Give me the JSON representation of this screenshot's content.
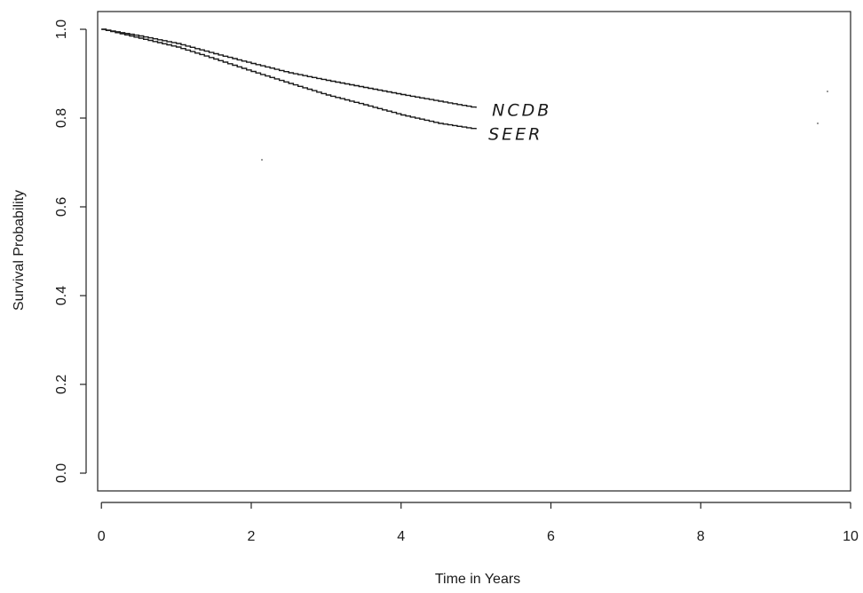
{
  "chart_data": {
    "type": "line",
    "title": "",
    "xlabel": "Time in Years",
    "ylabel": "Survival Probability",
    "xlim": [
      -0.05,
      10
    ],
    "ylim": [
      -0.04,
      1.04
    ],
    "x_ticks": [
      "0",
      "2",
      "4",
      "6",
      "8",
      "10"
    ],
    "y_ticks": [
      "0.0",
      "0.2",
      "0.4",
      "0.6",
      "0.8",
      "1.0"
    ],
    "x_tick_values": [
      0,
      2,
      4,
      6,
      8,
      10
    ],
    "y_tick_values": [
      0,
      0.2,
      0.4,
      0.6,
      0.8,
      1.0
    ],
    "grid": false,
    "legend": "none",
    "series": [
      {
        "name": "NCDB",
        "color": "#1a1a1a",
        "x": [
          0,
          0.5,
          1,
          1.5,
          2,
          2.5,
          3,
          3.5,
          4,
          4.5,
          5
        ],
        "y": [
          1.0,
          0.985,
          0.968,
          0.945,
          0.923,
          0.902,
          0.885,
          0.869,
          0.853,
          0.838,
          0.823
        ]
      },
      {
        "name": "SEER",
        "color": "#1a1a1a",
        "x": [
          0,
          0.5,
          1,
          1.5,
          2,
          2.5,
          3,
          3.5,
          4,
          4.5,
          5
        ],
        "y": [
          1.0,
          0.98,
          0.96,
          0.933,
          0.905,
          0.878,
          0.852,
          0.83,
          0.807,
          0.788,
          0.775
        ]
      }
    ],
    "annotations": [
      {
        "text": "NCDB",
        "series": "NCDB"
      },
      {
        "text": "SEER",
        "series": "SEER"
      }
    ]
  }
}
